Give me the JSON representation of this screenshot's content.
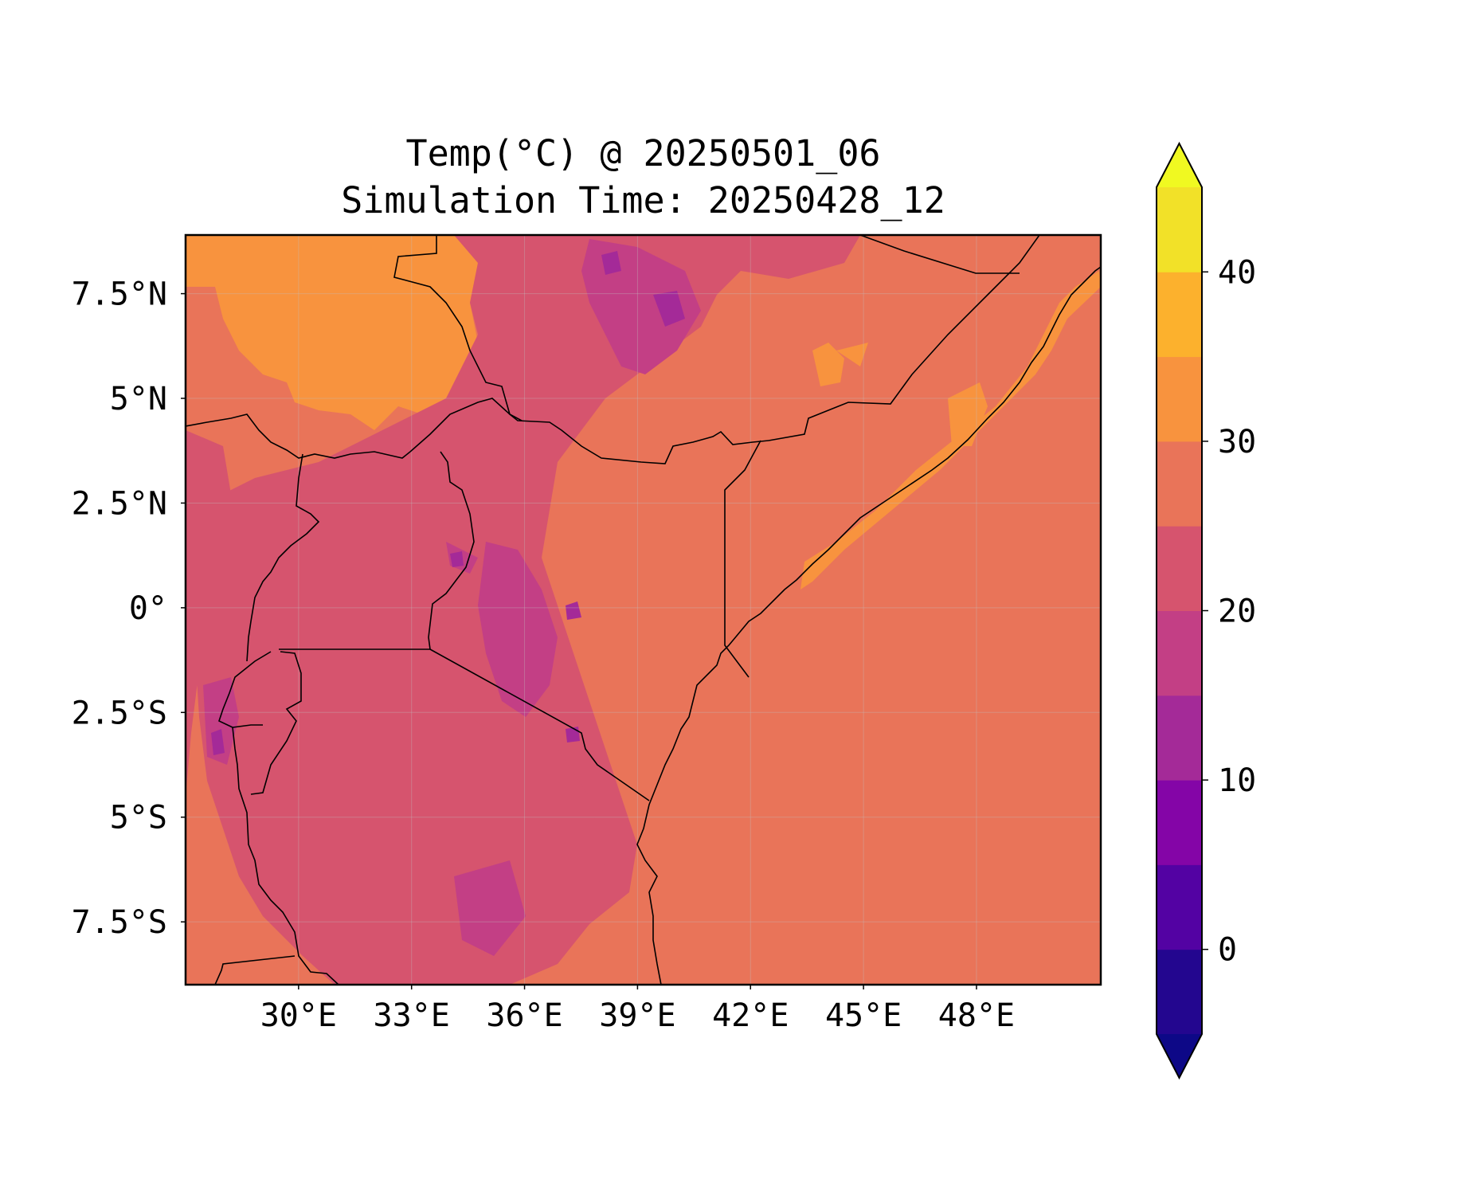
{
  "title_line1": "Temp(°C) @ 20250501_06",
  "title_line2": "Simulation Time: 20250428_12",
  "map": {
    "lon_range": [
      27,
      51.3
    ],
    "lat_range": [
      -9,
      8.9
    ],
    "x_ticks": [
      {
        "value": 30,
        "label": "30°E"
      },
      {
        "value": 33,
        "label": "33°E"
      },
      {
        "value": 36,
        "label": "36°E"
      },
      {
        "value": 39,
        "label": "39°E"
      },
      {
        "value": 42,
        "label": "42°E"
      },
      {
        "value": 45,
        "label": "45°E"
      },
      {
        "value": 48,
        "label": "48°E"
      }
    ],
    "y_ticks": [
      {
        "value": 7.5,
        "label": "7.5°N"
      },
      {
        "value": 5,
        "label": "5°N"
      },
      {
        "value": 2.5,
        "label": "2.5°N"
      },
      {
        "value": 0,
        "label": "0°"
      },
      {
        "value": -2.5,
        "label": "2.5°S"
      },
      {
        "value": -5,
        "label": "5°S"
      },
      {
        "value": -7.5,
        "label": "7.5°S"
      }
    ],
    "background_color": "#e97459",
    "border_color": "#000000",
    "gridlines": true
  },
  "colorbar": {
    "levels": [
      -5,
      0,
      5,
      10,
      15,
      20,
      25,
      30,
      35,
      40,
      45
    ],
    "colors": [
      "#23068f",
      "#5302a3",
      "#8405a7",
      "#a42a98",
      "#c33f85",
      "#d6546e",
      "#e97459",
      "#f8933e",
      "#fcb12d",
      "#f2e128"
    ],
    "under_color": "#0d0887",
    "over_color": "#f0f921",
    "tick_values": [
      0,
      10,
      20,
      30,
      40
    ],
    "tick_labels": [
      "0",
      "10",
      "20",
      "30",
      "40"
    ],
    "extend": "both"
  }
}
